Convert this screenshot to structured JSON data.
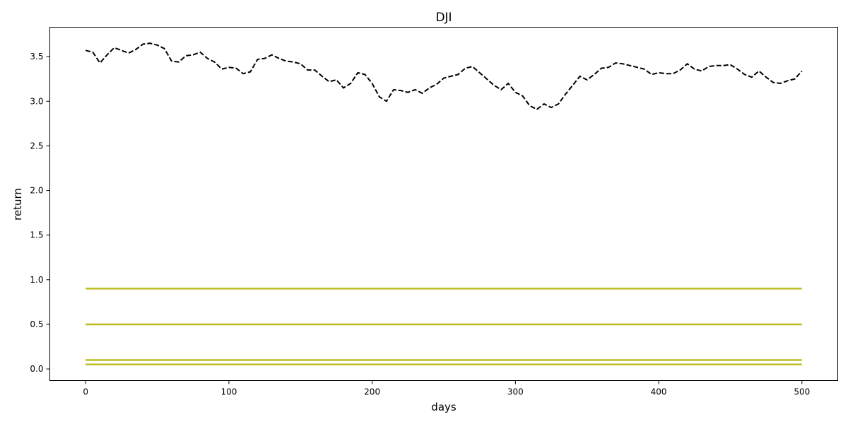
{
  "chart_data": {
    "type": "line",
    "title": "DJI",
    "xlabel": "days",
    "ylabel": "return",
    "xlim": [
      -25,
      525
    ],
    "ylim": [
      -0.13,
      3.83
    ],
    "xticks": [
      0,
      100,
      200,
      300,
      400,
      500
    ],
    "yticks": [
      0.0,
      0.5,
      1.0,
      1.5,
      2.0,
      2.5,
      3.0,
      3.5
    ],
    "ytick_labels": [
      "0.0",
      "0.5",
      "1.0",
      "1.5",
      "2.0",
      "2.5",
      "3.0",
      "3.5"
    ],
    "grid": false,
    "legend": false,
    "series": [
      {
        "style": "dashed",
        "color": "#000000",
        "x": [
          0,
          5,
          10,
          15,
          20,
          25,
          30,
          35,
          40,
          45,
          50,
          55,
          60,
          65,
          70,
          75,
          80,
          85,
          90,
          95,
          100,
          105,
          110,
          115,
          120,
          125,
          130,
          135,
          140,
          145,
          150,
          155,
          160,
          165,
          170,
          175,
          180,
          185,
          190,
          195,
          200,
          205,
          210,
          215,
          220,
          225,
          230,
          235,
          240,
          245,
          250,
          255,
          260,
          265,
          270,
          275,
          280,
          285,
          290,
          295,
          300,
          305,
          310,
          315,
          320,
          325,
          330,
          335,
          340,
          345,
          350,
          355,
          360,
          365,
          370,
          375,
          380,
          385,
          390,
          395,
          400,
          405,
          410,
          415,
          420,
          425,
          430,
          435,
          440,
          445,
          450,
          455,
          460,
          465,
          470,
          475,
          480,
          485,
          490,
          495,
          500
        ],
        "y": [
          3.57,
          3.55,
          3.43,
          3.52,
          3.6,
          3.57,
          3.54,
          3.58,
          3.64,
          3.65,
          3.63,
          3.59,
          3.45,
          3.44,
          3.51,
          3.52,
          3.55,
          3.48,
          3.44,
          3.36,
          3.38,
          3.37,
          3.31,
          3.33,
          3.47,
          3.48,
          3.52,
          3.48,
          3.45,
          3.44,
          3.42,
          3.35,
          3.35,
          3.28,
          3.22,
          3.24,
          3.15,
          3.2,
          3.32,
          3.3,
          3.2,
          3.05,
          3.0,
          3.13,
          3.12,
          3.1,
          3.13,
          3.09,
          3.15,
          3.19,
          3.26,
          3.28,
          3.3,
          3.37,
          3.39,
          3.32,
          3.25,
          3.18,
          3.13,
          3.2,
          3.1,
          3.06,
          2.95,
          2.91,
          2.97,
          2.93,
          2.97,
          3.08,
          3.18,
          3.28,
          3.24,
          3.3,
          3.37,
          3.38,
          3.43,
          3.42,
          3.4,
          3.38,
          3.36,
          3.3,
          3.32,
          3.31,
          3.31,
          3.35,
          3.42,
          3.36,
          3.34,
          3.39,
          3.4,
          3.4,
          3.41,
          3.36,
          3.3,
          3.27,
          3.34,
          3.27,
          3.21,
          3.2,
          3.23,
          3.25,
          3.34
        ]
      },
      {
        "style": "solid",
        "color": "#bcbd22",
        "x": [
          0,
          500
        ],
        "y": [
          0.9,
          0.9
        ]
      },
      {
        "style": "solid",
        "color": "#bcbd22",
        "x": [
          0,
          500
        ],
        "y": [
          0.5,
          0.5
        ]
      },
      {
        "style": "solid",
        "color": "#bcbd22",
        "x": [
          0,
          500
        ],
        "y": [
          0.1,
          0.1
        ]
      },
      {
        "style": "solid",
        "color": "#bcbd22",
        "x": [
          0,
          500
        ],
        "y": [
          0.05,
          0.05
        ]
      }
    ]
  }
}
